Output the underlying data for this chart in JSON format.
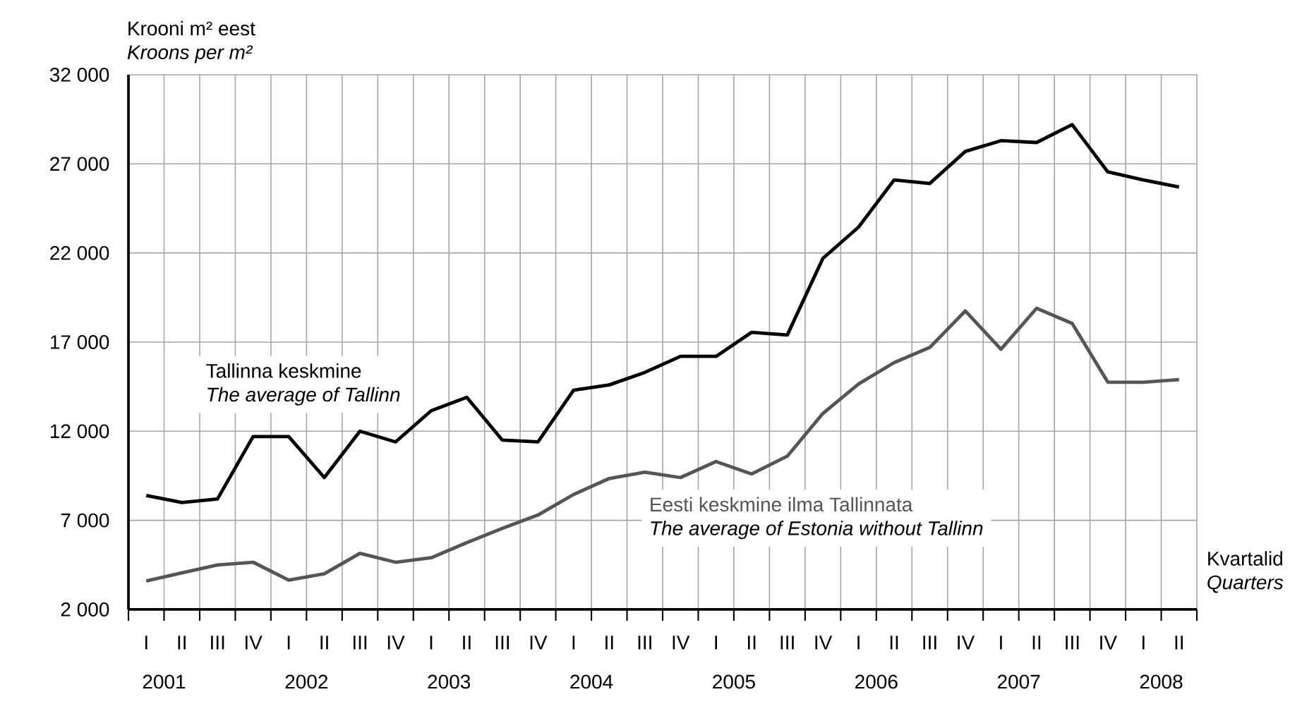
{
  "chart_data": {
    "type": "line",
    "ylabel": "Krooni m² eest",
    "xlabel": "Kvartalid",
    "annotations": [
      "Kroons per m²",
      "Quarters",
      "The average of Tallinn",
      "The average of Estonia without Tallinn",
      "2001",
      "2002",
      "2003",
      "2004",
      "2005",
      "2006",
      "2007",
      "2008"
    ],
    "categories": [
      "I",
      "II",
      "III",
      "IV",
      "I",
      "II",
      "III",
      "IV",
      "I",
      "II",
      "III",
      "IV",
      "I",
      "II",
      "III",
      "IV",
      "I",
      "II",
      "III",
      "IV",
      "I",
      "II",
      "III",
      "IV",
      "I",
      "II",
      "III",
      "IV",
      "I",
      "II"
    ],
    "series": [
      {
        "name": "Tallinna keskmine",
        "color": "#000000",
        "values": [
          8400,
          8000,
          8200,
          11700,
          11700,
          9400,
          12000,
          11400,
          13150,
          13900,
          11500,
          11400,
          14300,
          14600,
          15300,
          16200,
          16200,
          17550,
          17400,
          21700,
          23450,
          26100,
          25900,
          27700,
          28300,
          28200,
          29200,
          26550,
          26100,
          25700
        ]
      },
      {
        "name": "Eesti keskmine ilma Tallinnata",
        "color": "#555555",
        "values": [
          3600,
          4050,
          4500,
          4650,
          3650,
          4000,
          5150,
          4650,
          4900,
          5750,
          6550,
          7300,
          8450,
          9350,
          9700,
          9400,
          10300,
          9600,
          10600,
          13000,
          14650,
          15850,
          16700,
          18750,
          16600,
          18900,
          18050,
          14750,
          14750,
          14900
        ]
      }
    ],
    "ylim": [
      2000,
      32000
    ],
    "yticks": [
      {
        "value": 2000,
        "label": "2 000"
      },
      {
        "value": 7000,
        "label": "7 000"
      },
      {
        "value": 12000,
        "label": "12 000"
      },
      {
        "value": 17000,
        "label": "17 000"
      },
      {
        "value": 22000,
        "label": "22 000"
      },
      {
        "value": 27000,
        "label": "27 000"
      },
      {
        "value": 32000,
        "label": "32 000"
      }
    ],
    "grid": true,
    "line_style": "solid"
  }
}
